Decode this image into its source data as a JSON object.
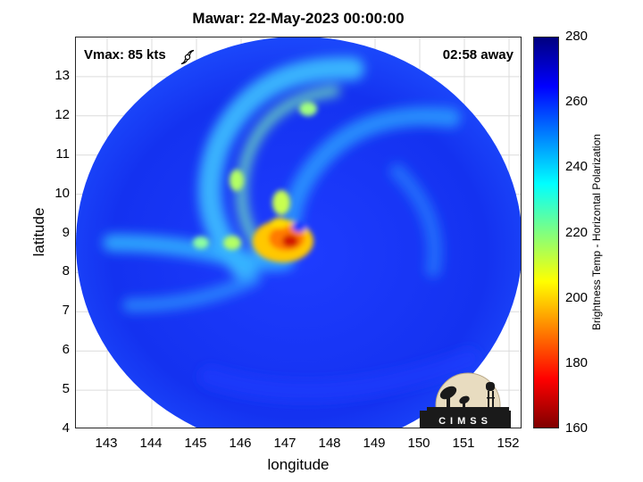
{
  "title": "Mawar: 22-May-2023 00:00:00",
  "annotations": {
    "vmax": "Vmax: 85 kts",
    "time_away": "02:58 away"
  },
  "logo_text": "CIMSS",
  "icons": {
    "storm": "hurricane-icon",
    "logo": "cimss-logo"
  },
  "axes": {
    "xlabel": "longitude",
    "ylabel": "latitude",
    "xlim": [
      142.3,
      152.3
    ],
    "ylim": [
      4,
      14
    ],
    "xticks": [
      "143",
      "144",
      "145",
      "146",
      "147",
      "148",
      "149",
      "150",
      "151",
      "152"
    ],
    "yticks": [
      "13",
      "12",
      "11",
      "10",
      "9",
      "8",
      "7",
      "6",
      "5",
      "4"
    ],
    "grid": true
  },
  "colorbar": {
    "label": "Brightness Temp - Horizontal Polarization",
    "range": [
      160,
      280
    ],
    "ticks": [
      "280",
      "260",
      "240",
      "220",
      "200",
      "180",
      "160"
    ],
    "colormap": "jet"
  },
  "storm": {
    "center_lon": 147.0,
    "center_lat": 8.5,
    "swath_center_lon": 147.0,
    "swath_center_lat": 8.8
  }
}
